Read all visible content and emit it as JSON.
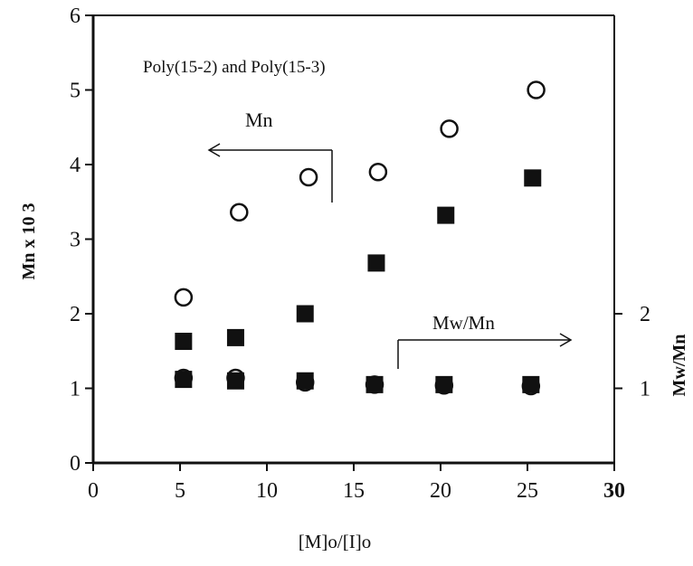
{
  "chart_data": {
    "type": "scatter",
    "title": "Poly(15-2) and Poly(15-3)",
    "xlabel": "[M]o/[I]o",
    "ylabel": "Mn x 10 3",
    "y2label": "Mw/Mn",
    "xlim": [
      0,
      30
    ],
    "ylim": [
      0,
      6
    ],
    "y2lim": [
      0,
      6
    ],
    "x_ticks": [
      "0",
      "5",
      "10",
      "15",
      "20",
      "25",
      "30"
    ],
    "y_ticks": [
      "0",
      "1",
      "2",
      "3",
      "4",
      "5",
      "6"
    ],
    "y2_ticks": [
      "1",
      "2"
    ],
    "grid": false,
    "annotations": [
      {
        "text": "Mn",
        "arrow_direction": "left"
      },
      {
        "text": "Mw/Mn",
        "arrow_direction": "right"
      }
    ],
    "series": [
      {
        "marker": "open-circle",
        "axis": "left",
        "x": [
          5.2,
          8.4,
          12.4,
          16.4,
          20.5,
          25.5
        ],
        "y": [
          2.22,
          3.36,
          3.83,
          3.9,
          4.48,
          5.0
        ]
      },
      {
        "marker": "filled-square",
        "axis": "left",
        "x": [
          5.2,
          8.2,
          12.2,
          16.3,
          20.3,
          25.3
        ],
        "y": [
          1.63,
          1.68,
          2.0,
          2.68,
          3.32,
          3.82
        ]
      },
      {
        "marker": "open-circle",
        "axis": "right",
        "x": [
          5.2,
          8.2,
          12.2,
          16.2,
          20.2,
          25.2
        ],
        "y": [
          1.14,
          1.14,
          1.08,
          1.05,
          1.04,
          1.03
        ]
      },
      {
        "marker": "filled-square",
        "axis": "right",
        "x": [
          5.2,
          8.2,
          12.2,
          16.2,
          20.2,
          25.2
        ],
        "y": [
          1.12,
          1.1,
          1.1,
          1.05,
          1.05,
          1.05
        ]
      }
    ]
  }
}
